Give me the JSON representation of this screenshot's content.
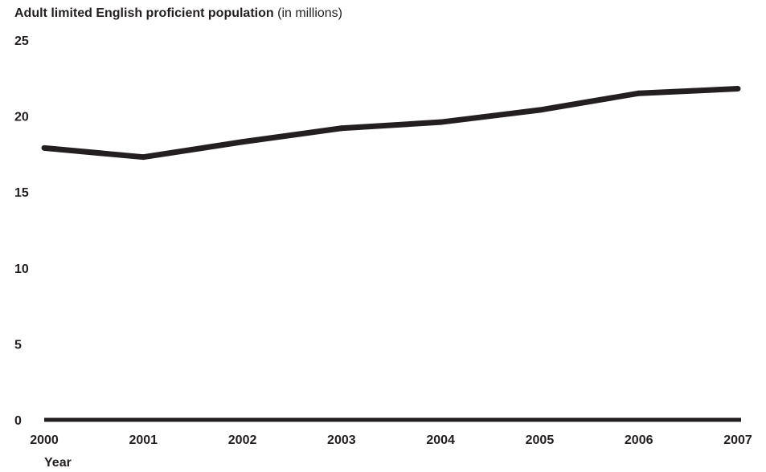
{
  "chart_data": {
    "type": "line",
    "title": "Adult limited English proficient population",
    "title_suffix": "(in millions)",
    "xlabel": "Year",
    "ylabel": "",
    "x": [
      "2000",
      "2001",
      "2002",
      "2003",
      "2004",
      "2005",
      "2006",
      "2007"
    ],
    "series": [
      {
        "values": [
          17.9,
          17.3,
          18.3,
          19.2,
          19.6,
          20.4,
          21.5,
          21.8
        ]
      }
    ],
    "ylim": [
      0,
      25
    ],
    "yticks": [
      "0",
      "5",
      "10",
      "15",
      "20",
      "25"
    ],
    "grid": false,
    "line_color": "#231f20"
  }
}
